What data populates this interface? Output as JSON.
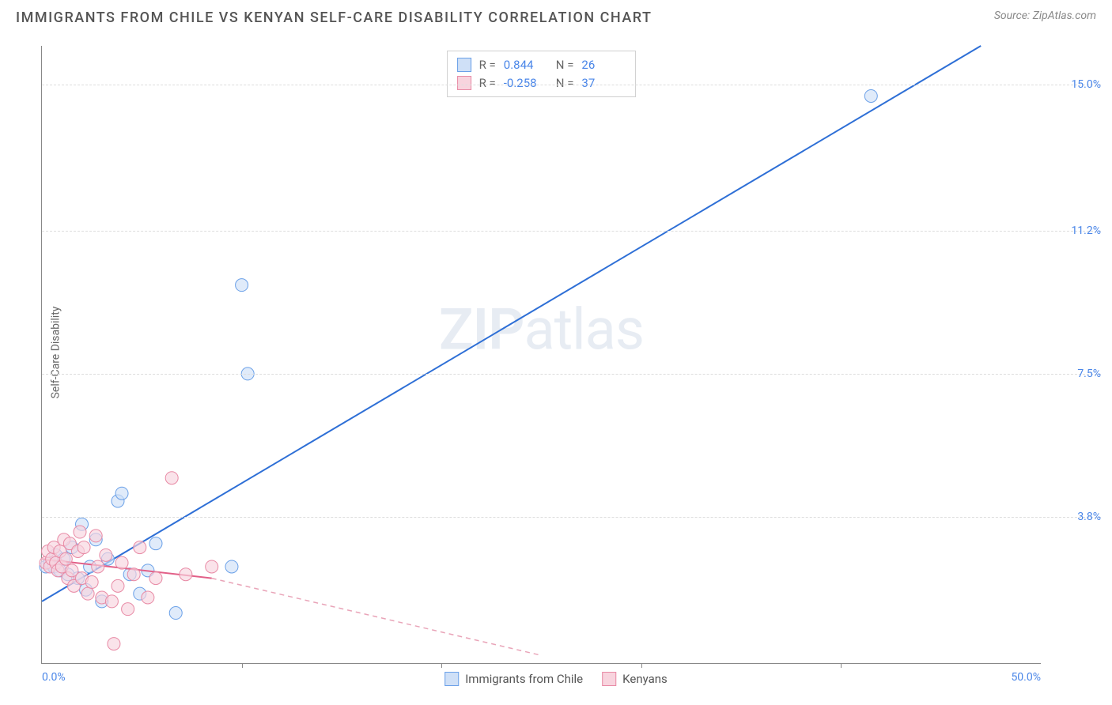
{
  "title": "IMMIGRANTS FROM CHILE VS KENYAN SELF-CARE DISABILITY CORRELATION CHART",
  "source": "Source: ZipAtlas.com",
  "watermark_left": "ZIP",
  "watermark_right": "atlas",
  "ylabel": "Self-Care Disability",
  "chart": {
    "type": "scatter",
    "xlim": [
      0,
      50
    ],
    "ylim": [
      0,
      16
    ],
    "x_ticks": [
      0,
      50
    ],
    "x_tick_labels": [
      "0.0%",
      "50.0%"
    ],
    "x_minor_ticks": [
      10,
      20,
      30,
      40
    ],
    "y_gridlines": [
      3.8,
      7.5,
      11.2,
      15.0
    ],
    "y_tick_labels": [
      "3.8%",
      "7.5%",
      "11.2%",
      "15.0%"
    ],
    "background_color": "#ffffff",
    "grid_color": "#dddddd",
    "axis_color": "#888888",
    "marker_radius": 8,
    "series": [
      {
        "id": "chile",
        "label": "Immigrants from Chile",
        "fill": "#cfe0f7",
        "stroke": "#6aa0e8",
        "fill_opacity": 0.65,
        "R": "0.844",
        "N": "26",
        "trend": {
          "x1": 0,
          "y1": 1.6,
          "x2": 47,
          "y2": 16,
          "color": "#2e6fd6",
          "width": 2,
          "dash": "none"
        },
        "points": [
          [
            0.2,
            2.5
          ],
          [
            0.4,
            2.6
          ],
          [
            0.6,
            2.5
          ],
          [
            0.7,
            2.8
          ],
          [
            0.9,
            2.4
          ],
          [
            1.1,
            2.7
          ],
          [
            1.3,
            2.3
          ],
          [
            1.5,
            3.0
          ],
          [
            1.8,
            2.2
          ],
          [
            2.0,
            3.6
          ],
          [
            2.2,
            1.9
          ],
          [
            2.4,
            2.5
          ],
          [
            2.7,
            3.2
          ],
          [
            3.0,
            1.6
          ],
          [
            3.3,
            2.7
          ],
          [
            3.8,
            4.2
          ],
          [
            4.0,
            4.4
          ],
          [
            4.4,
            2.3
          ],
          [
            4.9,
            1.8
          ],
          [
            5.3,
            2.4
          ],
          [
            5.7,
            3.1
          ],
          [
            6.7,
            1.3
          ],
          [
            9.5,
            2.5
          ],
          [
            10.3,
            7.5
          ],
          [
            10.0,
            9.8
          ],
          [
            41.5,
            14.7
          ]
        ]
      },
      {
        "id": "kenyans",
        "label": "Kenyans",
        "fill": "#f8d4de",
        "stroke": "#e88aa5",
        "fill_opacity": 0.65,
        "R": "-0.258",
        "N": "37",
        "trend": {
          "x1": 0,
          "y1": 2.7,
          "x2": 8.5,
          "y2": 2.2,
          "color": "#e26088",
          "width": 2,
          "dash": "none"
        },
        "trend_ext": {
          "x1": 8.5,
          "y1": 2.2,
          "x2": 25,
          "y2": 0.2,
          "color": "#e9a4b8",
          "width": 1.5,
          "dash": "6 5"
        },
        "points": [
          [
            0.2,
            2.6
          ],
          [
            0.3,
            2.9
          ],
          [
            0.4,
            2.5
          ],
          [
            0.5,
            2.7
          ],
          [
            0.6,
            3.0
          ],
          [
            0.7,
            2.6
          ],
          [
            0.8,
            2.4
          ],
          [
            0.9,
            2.9
          ],
          [
            1.0,
            2.5
          ],
          [
            1.1,
            3.2
          ],
          [
            1.2,
            2.7
          ],
          [
            1.3,
            2.2
          ],
          [
            1.4,
            3.1
          ],
          [
            1.5,
            2.4
          ],
          [
            1.6,
            2.0
          ],
          [
            1.8,
            2.9
          ],
          [
            1.9,
            3.4
          ],
          [
            2.0,
            2.2
          ],
          [
            2.1,
            3.0
          ],
          [
            2.3,
            1.8
          ],
          [
            2.5,
            2.1
          ],
          [
            2.7,
            3.3
          ],
          [
            2.8,
            2.5
          ],
          [
            3.0,
            1.7
          ],
          [
            3.2,
            2.8
          ],
          [
            3.5,
            1.6
          ],
          [
            3.8,
            2.0
          ],
          [
            4.0,
            2.6
          ],
          [
            4.3,
            1.4
          ],
          [
            4.6,
            2.3
          ],
          [
            4.9,
            3.0
          ],
          [
            5.3,
            1.7
          ],
          [
            5.7,
            2.2
          ],
          [
            3.6,
            0.5
          ],
          [
            6.5,
            4.8
          ],
          [
            7.2,
            2.3
          ],
          [
            8.5,
            2.5
          ]
        ]
      }
    ]
  },
  "label_fontsize": 14,
  "title_fontsize": 18
}
